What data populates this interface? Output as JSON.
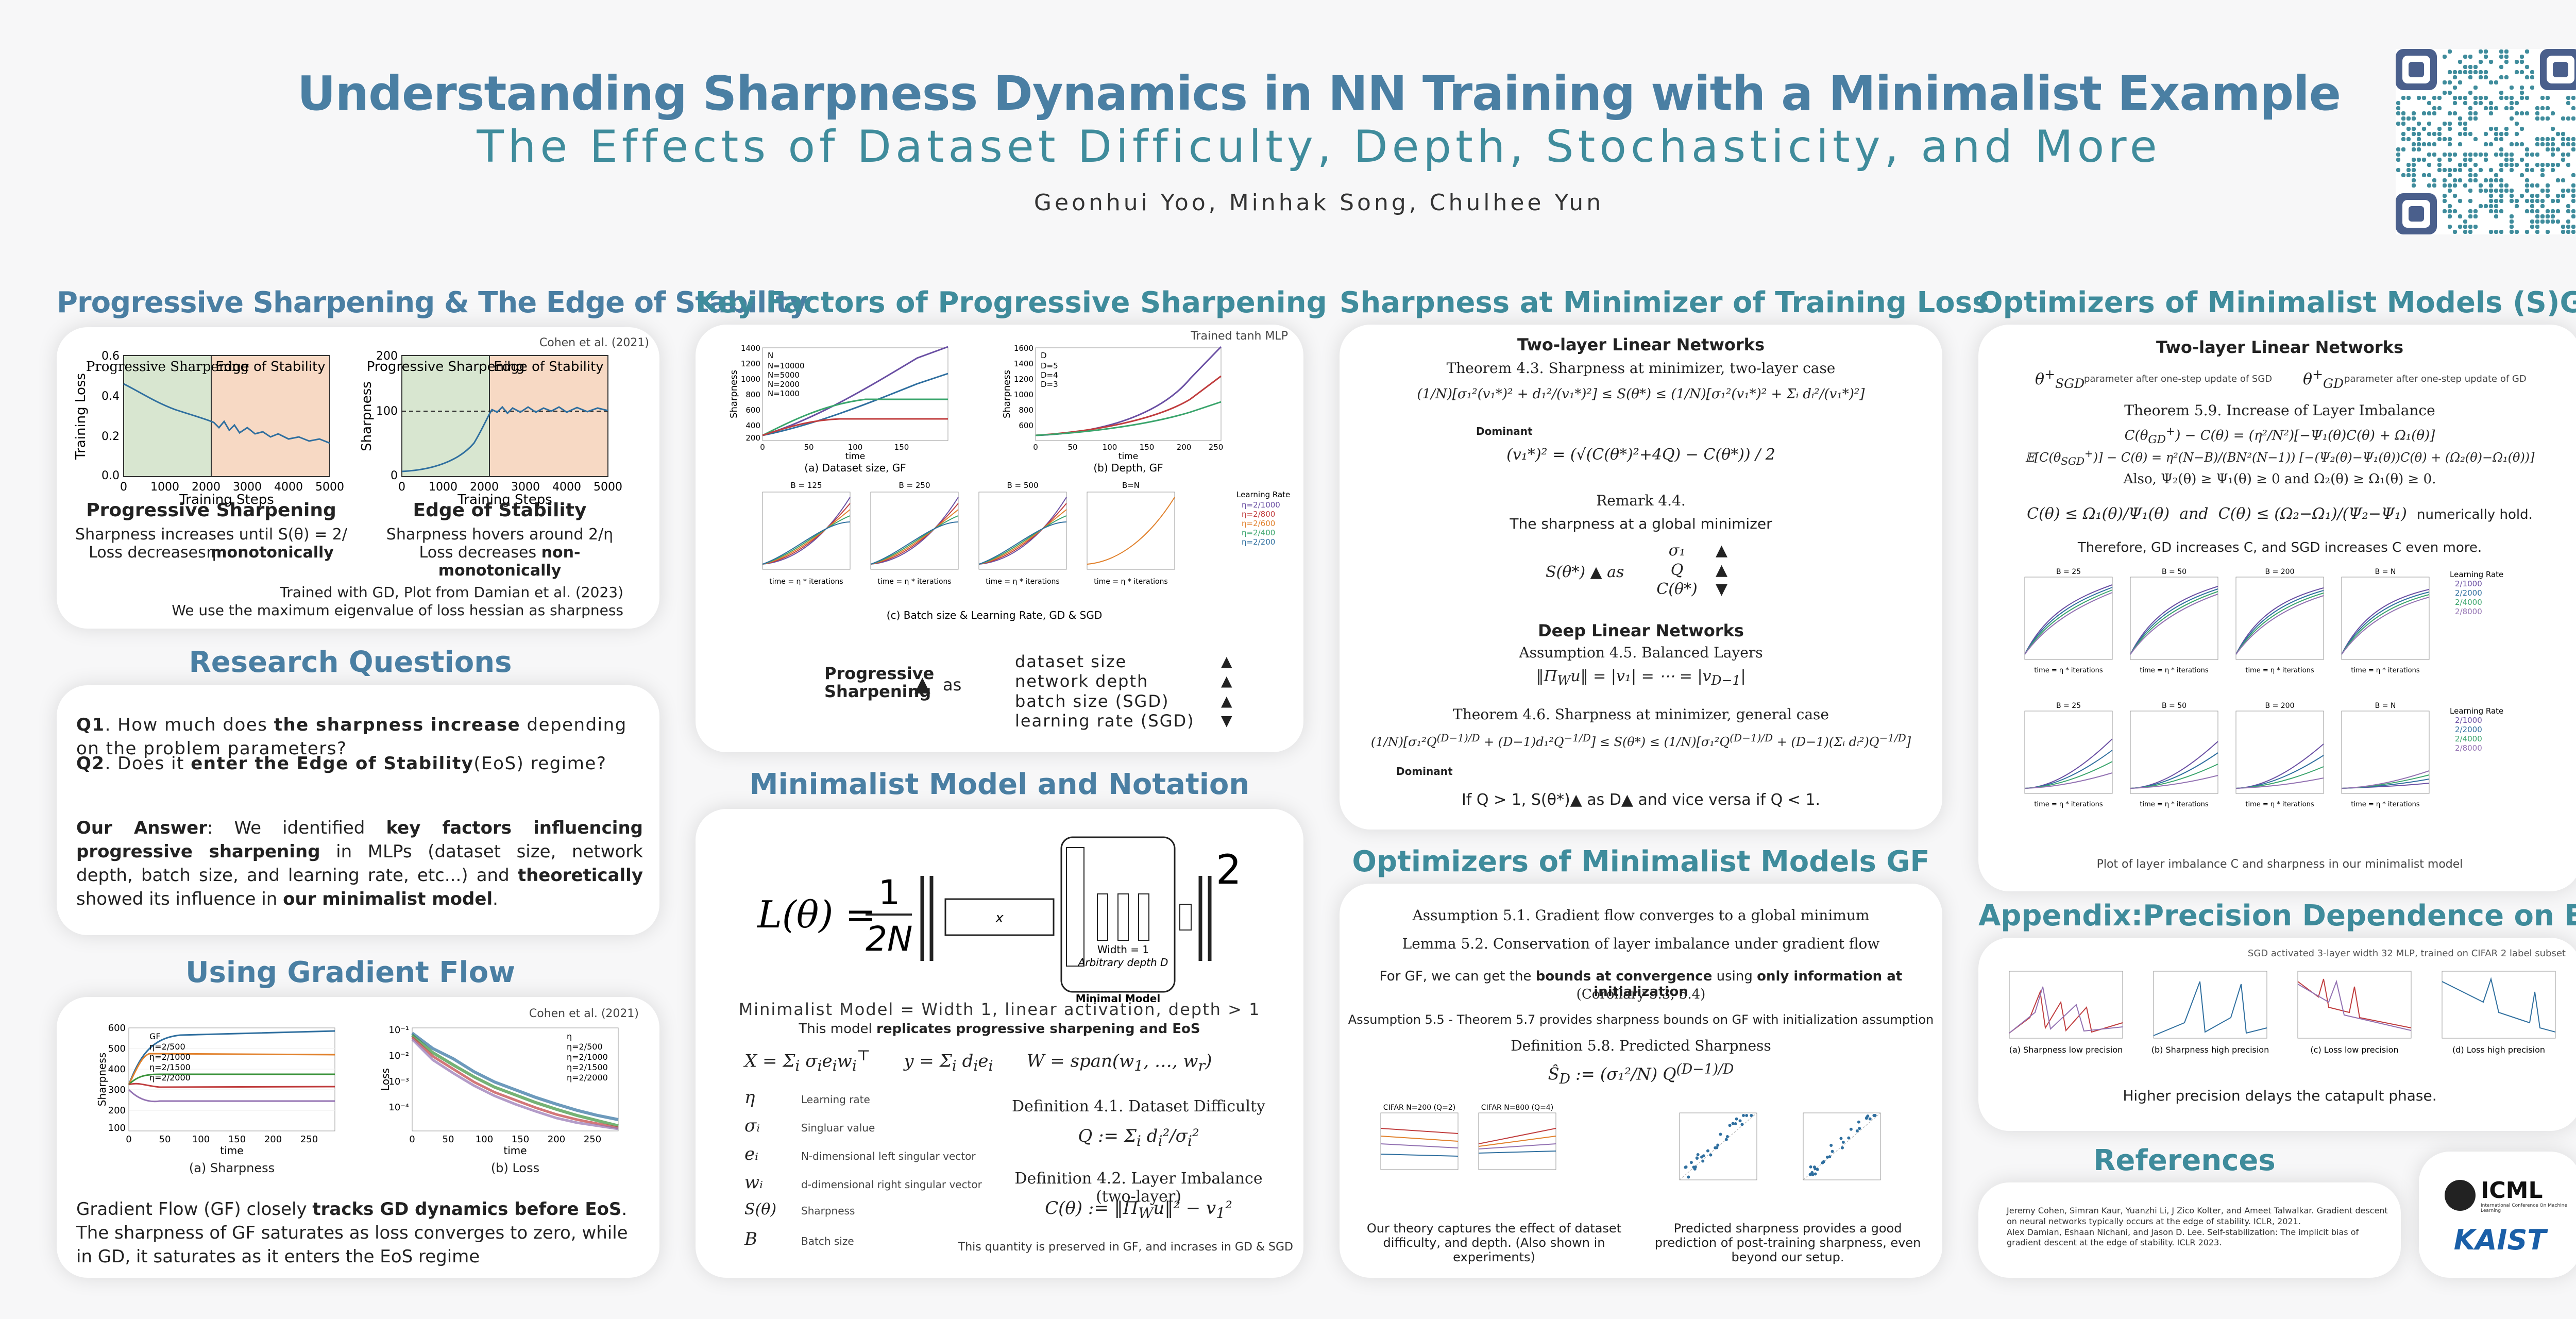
{
  "header": {
    "title": "Understanding Sharpness Dynamics in NN Training with a Minimalist Example",
    "subtitle": "The Effects of Dataset Difficulty, Depth, Stochasticity, and More",
    "authors": "Geonhui Yoo, Minhak Song, Chulhee Yun"
  },
  "ps": {
    "heading": "Progressive Sharpening & The Edge of Stability",
    "cite": "Cohen et al. (2021)",
    "left_plot": {
      "ylabel": "Training Loss",
      "xlabel": "Training Steps",
      "region1": "Progressive Sharpening",
      "region2": "Edge of Stability",
      "yticks": [
        "0.0",
        "0.2",
        "0.4",
        "0.6"
      ],
      "xticks": [
        "0",
        "1000",
        "2000",
        "3000",
        "4000",
        "5000"
      ]
    },
    "right_plot": {
      "ylabel": "Sharpness",
      "xlabel": "Training Steps",
      "region1": "Progressive Sharpening",
      "region2": "Edge of Stability",
      "yticks": [
        "0",
        "100",
        "200"
      ],
      "xticks": [
        "0",
        "1000",
        "2000",
        "3000",
        "4000",
        "5000"
      ]
    },
    "col1_title": "Progressive Sharpening",
    "col1_l1": "Sharpness increases until S(θ) = 2/η",
    "col1_l2a": "Loss decreases ",
    "col1_l2b": "monotonically",
    "col2_title": "Edge of Stability",
    "col2_l1": "Sharpness hovers around 2/η",
    "col2_l2a": "Loss decreases ",
    "col2_l2b": "non-monotonically",
    "foot1": "Trained with GD, Plot from Damian et al. (2023)",
    "foot2": "We use the maximum eigenvalue of loss hessian as sharpness"
  },
  "rq": {
    "heading": "Research Questions",
    "q1a": "Q1",
    "q1b": ". How much does ",
    "q1c": "the sharpness increase",
    "q1d": " depending on the problem parameters?",
    "q2a": "Q2",
    "q2b": ". Does it ",
    "q2c": "enter the Edge of Stability",
    "q2d": "(EoS) regime?",
    "ans1": "Our Answer",
    "ans2": ": We identified ",
    "ans3": "key factors influencing progressive sharpening",
    "ans4": " in MLPs (dataset size, network depth, batch size, and learning rate, etc...) and ",
    "ans5": "theoretically",
    "ans6": " showed its influence in ",
    "ans7": "our minimalist model",
    "ans8": "."
  },
  "gf": {
    "heading": "Using Gradient Flow",
    "cite": "Cohen et al. (2021)",
    "capA": "(a) Sharpness",
    "capB": "(b) Loss",
    "legend": [
      "GF",
      "η=2/500",
      "η=2/1000",
      "η=2/1500",
      "η=2/2000"
    ],
    "legend_b": [
      "η",
      "η=2/500",
      "η=2/1000",
      "η=2/1500",
      "η=2/2000"
    ],
    "ylabelA": "Sharpness",
    "ylabelB": "Loss",
    "xlabel": "time",
    "text1": "Gradient Flow (GF) closely ",
    "text2": "tracks GD dynamics before EoS",
    "text3": ". The sharpness of GF saturates as loss converges to zero, while in GD, it saturates as it enters the EoS regime"
  },
  "kf": {
    "heading": "Key Factors of Progressive Sharpening",
    "note": "Trained tanh MLP",
    "capA": "(a) Dataset size, GF",
    "capB": "(b) Depth, GF",
    "capC": "(c) Batch size & Learning Rate, GD & SGD",
    "legendA": [
      "N",
      "N=10000",
      "N=5000",
      "N=2000",
      "N=1000"
    ],
    "legendB": [
      "D",
      "D=5",
      "D=4",
      "D=3"
    ],
    "batches": [
      "B = 125",
      "B = 250",
      "B = 500",
      "B=N"
    ],
    "lr_title": "Learning Rate",
    "lr": [
      "η=2/1000",
      "η=2/800",
      "η=2/600",
      "η=2/400",
      "η=2/200"
    ],
    "summary": "Progressive Sharpening",
    "as": "as",
    "factors": [
      "dataset   size",
      "network   depth",
      "batch  size  (SGD)",
      "learning rate  (SGD)"
    ],
    "arrows": [
      "▲",
      "▲",
      "▲",
      "▼"
    ]
  },
  "mm": {
    "heading": "Minimalist Model and Notation",
    "caption": "Minimalist Model = Width 1, linear activation, depth > 1",
    "rep1": "This model ",
    "rep2": "replicates progressive sharpening and EoS",
    "box_x": "x",
    "box_w1": "Width = 1",
    "box_w2": "Arbitrary depth D",
    "box_label": "Minimal Model",
    "notation": [
      {
        "sym": "η",
        "desc": "Learning rate"
      },
      {
        "sym": "σᵢ",
        "desc": "Singluar value"
      },
      {
        "sym": "eᵢ",
        "desc": "N-dimensional left singular vector"
      },
      {
        "sym": "wᵢ",
        "desc": "d-dimensional right singular vector"
      },
      {
        "sym": "S(θ)",
        "desc": "Sharpness"
      },
      {
        "sym": "B",
        "desc": "Batch size"
      }
    ],
    "def41": "Definition 4.1. Dataset Difficulty",
    "def42": "Definition 4.2. Layer Imbalance (two-layer)",
    "preserved": "This quantity is preserved in GF, and incrases in GD & SGD"
  },
  "smin": {
    "heading": "Sharpness at Minimizer of Training Loss",
    "two": "Two-layer Linear Networks",
    "thm43": "Theorem 4.3. Sharpness at minimizer, two-layer case",
    "dominant": "Dominant",
    "rem44": "Remark 4.4.",
    "global": "The sharpness at a global minimizer",
    "deep": "Deep Linear Networks",
    "ass45": "Assumption 4.5. Balanced Layers",
    "thm46": "Theorem 4.6. Sharpness at minimizer, general case",
    "dominant2": "Dominant",
    "last": "If Q > 1, S(θ*)▲ as  D▲  and vice versa if  Q < 1."
  },
  "ogf": {
    "heading": "Optimizers of Minimalist Models GF",
    "ass51": "Assumption 5.1. Gradient flow converges to a global minimum",
    "lem52": "Lemma 5.2. Conservation of layer imbalance under gradient flow",
    "gf1": "For GF, we can get the ",
    "gf2": "bounds at convergence",
    "gf3": " using ",
    "gf4": "only information at initialization",
    "gf5": "(Corollary 5.3, 5.4)",
    "ass55": "Assumption 5.5 - Theorem 5.7 provides sharpness bounds on GF with initialization assumption",
    "def58": "Definition 5.8. Predicted Sharpness",
    "plotA": "CIFAR N=200 (Q=2)",
    "plotB": "CIFAR N=800 (Q=4)",
    "cap1": "Our theory captures the effect of dataset difficulty, and depth. (Also shown in experiments)",
    "cap2": "Predicted sharpness provides a good prediction of post-training sharpness, even beyond our setup."
  },
  "osgd": {
    "heading": "Optimizers of Minimalist Models (S)GD",
    "two": "Two-layer Linear Networks",
    "p1": "parameter after one-step update of SGD",
    "p2": "parameter after one-step update of GD",
    "thm59": "Theorem 5.9. Increase of Layer Imbalance",
    "also": "Also, Ψ₂(θ) ≥ Ψ₁(θ) ≥ 0 and Ω₂(θ) ≥ Ω₁(θ) ≥ 0.",
    "numer": "numerically hold.",
    "therefore": "Therefore, GD increases C, and SGD increases C even more.",
    "batches": [
      "B = 25",
      "B = 50",
      "B = 200",
      "B = N"
    ],
    "lr_title": "Learning Rate",
    "lr": [
      "2/1000",
      "2/2000",
      "2/4000",
      "2/8000"
    ],
    "lr2": [
      "2/1000",
      "2/2000",
      "2/4000",
      "2/8000"
    ],
    "xlabel": "time = η * iterations",
    "caption": "Plot of layer imbalance C and sharpness in our minimalist model"
  },
  "app": {
    "heading": "Appendix:Precision Dependence on EoS",
    "note": "SGD activated 3-layer width 32 MLP, trained on CIFAR 2 label subset",
    "caps": [
      "(a) Sharpness low precision",
      "(b) Sharpness high precision",
      "(c) Loss low precision",
      "(d) Loss high precision"
    ],
    "text": "Higher precision delays the catapult phase."
  },
  "ref": {
    "heading": "References",
    "r1": "Jeremy Cohen, Simran Kaur, Yuanzhi Li, J Zico Kolter, and Ameet Talwalkar. Gradient descent on neural networks typically occurs at the edge of stability. ICLR, 2021.",
    "r2": "Alex Damian, Eshaan Nichani, and Jason D. Lee. Self-stabilization: The implicit bias of gradient descent at the edge of stability. ICLR 2023.",
    "icml": "ICML",
    "icml_sub": "International Conference On Machine Learning",
    "kaist": "KAIST"
  },
  "colors": {
    "blue": "#4a7fa3",
    "teal": "#3f8c9c",
    "green_region": "#d8e6d0",
    "orange_region": "#f7d9c4",
    "curve": "#2f6f9f"
  }
}
